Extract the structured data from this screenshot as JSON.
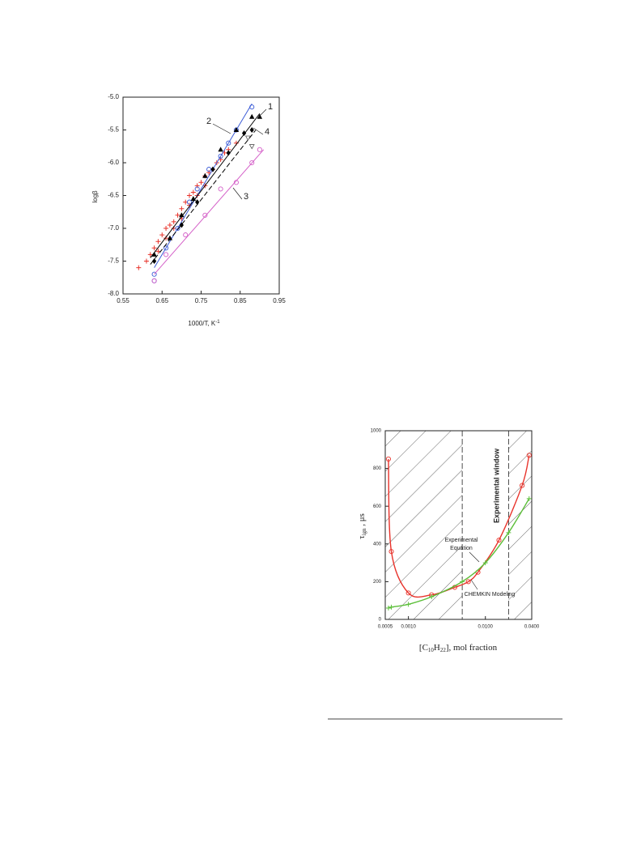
{
  "chart_data": [
    {
      "type": "scatter",
      "xlabel": [
        "1000/T,  K",
        "-1"
      ],
      "ylabel": "logβ",
      "xlim": [
        0.55,
        0.95
      ],
      "ylim": [
        -8.0,
        -5.0
      ],
      "xticks": [
        0.55,
        0.65,
        0.75,
        0.85,
        0.95
      ],
      "yticks": [
        {
          "value": -5.0,
          "label": "-5.0"
        },
        -5.5,
        {
          "value": -6.0,
          "label": "-6.0"
        },
        -6.5,
        {
          "value": -7.0,
          "label": "-7.0"
        },
        -7.5,
        {
          "value": -8.0,
          "label": "-8.0"
        }
      ],
      "series": [
        {
          "marker": "plus",
          "color": "#e8332b",
          "x": [
            0.59,
            0.61,
            0.62,
            0.63,
            0.64,
            0.64,
            0.65,
            0.66,
            0.66,
            0.67,
            0.68,
            0.68,
            0.69,
            0.7,
            0.7,
            0.71,
            0.72,
            0.72,
            0.73,
            0.74,
            0.74,
            0.75,
            0.76,
            0.76,
            0.77,
            0.78,
            0.79,
            0.8,
            0.81,
            0.82,
            0.84
          ],
          "values": [
            -7.6,
            -7.5,
            -7.4,
            -7.3,
            -7.2,
            -7.35,
            -7.1,
            -7.0,
            -7.15,
            -6.95,
            -6.9,
            -7.0,
            -6.8,
            -6.7,
            -6.85,
            -6.6,
            -6.5,
            -6.65,
            -6.45,
            -6.35,
            -6.5,
            -6.3,
            -6.2,
            -6.35,
            -6.15,
            -6.1,
            -6.0,
            -5.95,
            -5.85,
            -5.8,
            -5.7
          ]
        },
        {
          "marker": "circle",
          "color": "#3b5bd6",
          "x": [
            0.63,
            0.63,
            0.66,
            0.69,
            0.72,
            0.74,
            0.77,
            0.8,
            0.82,
            0.84,
            0.88
          ],
          "values": [
            -7.7,
            -7.8,
            -7.3,
            -7.0,
            -6.6,
            -6.4,
            -6.1,
            -5.9,
            -5.7,
            -5.5,
            -5.15
          ]
        },
        {
          "marker": "none",
          "line": "solid",
          "color": "#3b5bd6",
          "x": [
            0.63,
            0.88
          ],
          "values": [
            -7.6,
            -5.1
          ]
        },
        {
          "marker": "triangle",
          "color": "#000000",
          "x": [
            0.63,
            0.67,
            0.7,
            0.73,
            0.76,
            0.8,
            0.84,
            0.88,
            0.9
          ],
          "values": [
            -7.4,
            -7.15,
            -6.8,
            -6.55,
            -6.2,
            -5.8,
            -5.5,
            -5.3,
            -5.3
          ]
        },
        {
          "marker": "none",
          "line": "solid",
          "color": "#000000",
          "x": [
            0.62,
            0.9
          ],
          "values": [
            -7.45,
            -5.25
          ]
        },
        {
          "marker": "diamond",
          "color": "#000000",
          "x": [
            0.63,
            0.7,
            0.74,
            0.78,
            0.82,
            0.86,
            0.88
          ],
          "values": [
            -7.5,
            -6.95,
            -6.6,
            -6.1,
            -5.85,
            -5.55,
            -5.5
          ]
        },
        {
          "marker": "none",
          "line": "dashed",
          "color": "#000000",
          "x": [
            0.62,
            0.89
          ],
          "values": [
            -7.55,
            -5.5
          ]
        },
        {
          "marker": "itri",
          "color": "#555555",
          "x": [
            0.87,
            0.88
          ],
          "values": [
            -5.62,
            -5.75
          ]
        },
        {
          "marker": "circle",
          "color": "#d45fc8",
          "x": [
            0.63,
            0.66,
            0.71,
            0.76,
            0.8,
            0.84,
            0.88,
            0.9
          ],
          "values": [
            -7.8,
            -7.4,
            -7.1,
            -6.8,
            -6.4,
            -6.3,
            -6.0,
            -5.8
          ]
        },
        {
          "marker": "none",
          "line": "solid",
          "color": "#d45fc8",
          "x": [
            0.63,
            0.91
          ],
          "values": [
            -7.7,
            -5.8
          ]
        }
      ],
      "annotations": [
        "1",
        "2",
        "3",
        "4"
      ]
    },
    {
      "type": "line",
      "xlabel": [
        "[C",
        "10",
        "H",
        "22",
        "], mol fraction"
      ],
      "ylabel": [
        "τ",
        "ign",
        " ,  μs"
      ],
      "xlog": true,
      "xlim": [
        0.0005,
        0.04
      ],
      "ylim": [
        0,
        1000
      ],
      "xticks": [
        {
          "value": 0.0005,
          "label": "0.0005"
        },
        {
          "value": 0.001,
          "label": "0.0010"
        },
        {
          "value": 0.01,
          "label": "0.0100"
        },
        {
          "value": 0.04,
          "label": "0.0400"
        }
      ],
      "yticks": [
        0,
        200,
        400,
        600,
        800,
        1000
      ],
      "window": [
        0.005,
        0.02
      ],
      "series": [
        {
          "marker": "circle",
          "color": "#e8332b",
          "x": [
            0.00055,
            0.0006,
            0.001,
            0.002,
            0.004,
            0.006,
            0.008,
            0.015,
            0.03,
            0.037
          ],
          "values": [
            850,
            360,
            140,
            130,
            170,
            200,
            250,
            420,
            710,
            870
          ]
        },
        {
          "marker": "plus",
          "color": "#5cbf3a",
          "x": [
            0.00055,
            0.0006,
            0.001,
            0.002,
            0.005,
            0.01,
            0.02,
            0.037
          ],
          "values": [
            60,
            65,
            80,
            120,
            200,
            300,
            460,
            640
          ]
        }
      ],
      "annotations": [
        "Experimental window",
        "Experimental",
        "Equation",
        "CHEMKIN Modeling"
      ]
    }
  ]
}
